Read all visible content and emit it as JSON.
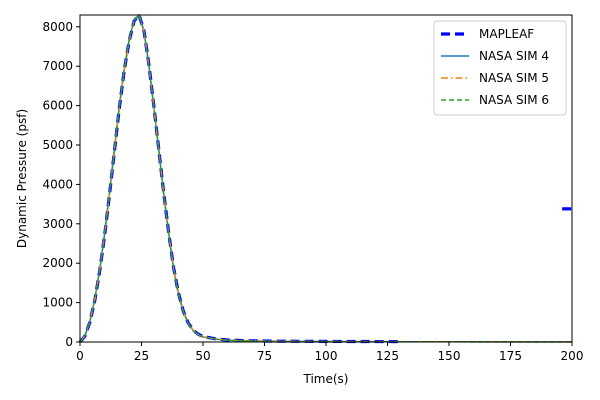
{
  "chart_data": {
    "type": "line",
    "title": "",
    "xlabel": "Time(s)",
    "ylabel": "Dynamic Pressure (psf)",
    "xlim": [
      0,
      200
    ],
    "ylim": [
      0,
      8300
    ],
    "xticks": [
      0,
      25,
      50,
      75,
      100,
      125,
      150,
      175,
      200
    ],
    "yticks": [
      0,
      1000,
      2000,
      3000,
      4000,
      5000,
      6000,
      7000,
      8000
    ],
    "grid": false,
    "legend_position": "top-right",
    "series": [
      {
        "name": "MAPLEAF",
        "color": "#0000ff",
        "style": "dashed-thick",
        "x": [
          0,
          2,
          4,
          6,
          8,
          10,
          12,
          14,
          16,
          18,
          20,
          22,
          24,
          26,
          28,
          30,
          32,
          34,
          36,
          38,
          40,
          42,
          44,
          46,
          48,
          50,
          55,
          60,
          70,
          80,
          100,
          130
        ],
        "y": [
          0,
          150,
          500,
          1050,
          1800,
          2700,
          3750,
          4850,
          5950,
          6900,
          7650,
          8150,
          8300,
          7900,
          7050,
          6000,
          4900,
          3800,
          2800,
          1900,
          1250,
          780,
          480,
          300,
          200,
          140,
          80,
          50,
          30,
          20,
          15,
          10
        ]
      },
      {
        "name": "",
        "color": "#0000ff",
        "style": "dashed-thick",
        "x": [
          196,
          200
        ],
        "y": [
          3380,
          3380
        ]
      },
      {
        "name": "NASA SIM 4",
        "color": "#1f77b4",
        "style": "solid",
        "x": [
          0,
          2,
          4,
          6,
          8,
          10,
          12,
          14,
          16,
          18,
          20,
          22,
          24,
          26,
          28,
          30,
          32,
          34,
          36,
          38,
          40,
          42,
          44,
          46,
          48,
          50,
          55,
          60,
          70,
          80,
          100,
          150,
          200
        ],
        "y": [
          0,
          160,
          520,
          1080,
          1830,
          2740,
          3790,
          4900,
          5990,
          6930,
          7680,
          8170,
          8310,
          7890,
          7030,
          5980,
          4880,
          3780,
          2780,
          1880,
          1230,
          770,
          470,
          290,
          190,
          130,
          75,
          45,
          25,
          15,
          10,
          5,
          3
        ]
      },
      {
        "name": "NASA SIM 5",
        "color": "#ff7f0e",
        "style": "dashdot",
        "x": [
          0,
          2,
          4,
          6,
          8,
          10,
          12,
          14,
          16,
          18,
          20,
          22,
          24,
          26,
          28,
          30,
          32,
          34,
          36,
          38,
          40,
          42,
          44,
          46,
          48,
          50,
          55,
          60,
          70,
          80,
          100,
          150,
          200
        ],
        "y": [
          0,
          155,
          510,
          1065,
          1815,
          2720,
          3770,
          4870,
          5970,
          6910,
          7660,
          8160,
          8305,
          7895,
          7040,
          5990,
          4890,
          3790,
          2790,
          1890,
          1240,
          775,
          475,
          295,
          195,
          135,
          78,
          48,
          28,
          18,
          12,
          6,
          4
        ]
      },
      {
        "name": "NASA SIM 6",
        "color": "#2ca02c",
        "style": "dashed",
        "x": [
          0,
          2,
          4,
          6,
          8,
          10,
          12,
          14,
          16,
          18,
          20,
          22,
          24,
          26,
          28,
          30,
          32,
          34,
          36,
          38,
          40,
          42,
          44,
          46,
          48,
          50,
          55,
          60,
          70,
          80,
          100,
          150,
          200
        ],
        "y": [
          0,
          158,
          515,
          1070,
          1820,
          2730,
          3780,
          4880,
          5980,
          6920,
          7670,
          8165,
          8300,
          7885,
          7025,
          5975,
          4875,
          3775,
          2775,
          1875,
          1225,
          765,
          465,
          285,
          185,
          128,
          72,
          44,
          24,
          14,
          9,
          5,
          3
        ]
      }
    ]
  }
}
